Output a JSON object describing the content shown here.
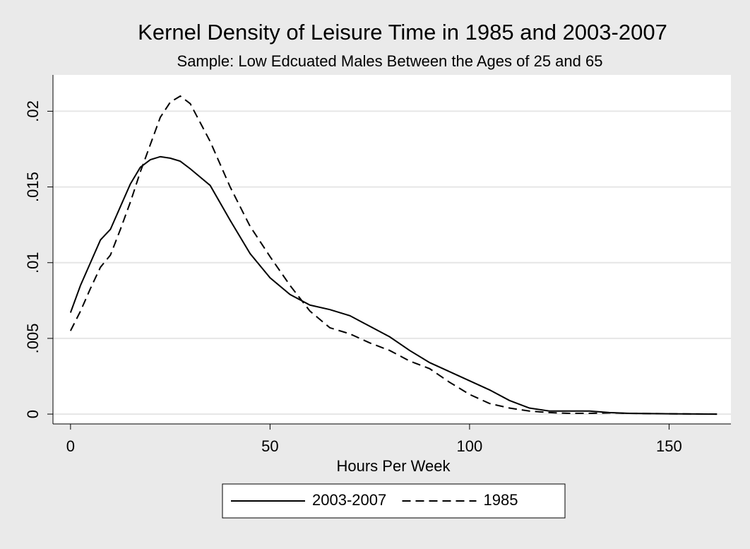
{
  "chart_data": {
    "type": "line",
    "title": "Kernel Density of Leisure Time in 1985 and 2003-2007",
    "subtitle": "Sample:  Low Edcuated Males Between the Ages of 25 and 65",
    "x_label": "Hours Per Week",
    "x": [
      0,
      2.5,
      5,
      7.5,
      10,
      12.5,
      15,
      17.5,
      20,
      22.5,
      25,
      27.5,
      30,
      35,
      40,
      45,
      50,
      55,
      60,
      65,
      70,
      75,
      80,
      85,
      90,
      95,
      100,
      105,
      110,
      115,
      120,
      125,
      130,
      135,
      140,
      150,
      162
    ],
    "series": [
      {
        "name": "2003-2007",
        "color": "#000000",
        "line_style": "solid",
        "values": [
          0.0067,
          0.0085,
          0.01,
          0.0115,
          0.0122,
          0.0137,
          0.0152,
          0.0163,
          0.0168,
          0.017,
          0.0169,
          0.0167,
          0.0162,
          0.0151,
          0.0128,
          0.0106,
          0.009,
          0.0079,
          0.0072,
          0.0069,
          0.0065,
          0.0058,
          0.0051,
          0.0042,
          0.0034,
          0.0028,
          0.0022,
          0.0016,
          0.0009,
          0.0004,
          0.0002,
          0.0002,
          0.0002,
          0.0001,
          5e-05,
          2e-05,
          0
        ]
      },
      {
        "name": "1985",
        "color": "#000000",
        "line_style": "dashed",
        "values": [
          0.0055,
          0.0068,
          0.0083,
          0.0097,
          0.0105,
          0.0122,
          0.014,
          0.016,
          0.0178,
          0.0196,
          0.0206,
          0.021,
          0.0205,
          0.018,
          0.015,
          0.0124,
          0.0104,
          0.0085,
          0.0068,
          0.0057,
          0.0053,
          0.0047,
          0.0042,
          0.0035,
          0.003,
          0.0021,
          0.0013,
          0.0007,
          0.0004,
          0.0002,
          0.0001,
          5e-05,
          5e-05,
          8e-05,
          5e-05,
          2e-05,
          0
        ]
      }
    ],
    "xlim": [
      -4.4,
      165.5
    ],
    "ylim": [
      -0.00065,
      0.0224
    ],
    "xticks": [
      0,
      50,
      100,
      150
    ],
    "yticks": [
      0,
      {
        "value": 0.005,
        "label": ".005"
      },
      {
        "value": 0.01,
        "label": ".01"
      },
      {
        "value": 0.015,
        "label": ".015"
      },
      {
        "value": 0.02,
        "label": ".02"
      }
    ],
    "grid": true,
    "legend": "bottom"
  }
}
